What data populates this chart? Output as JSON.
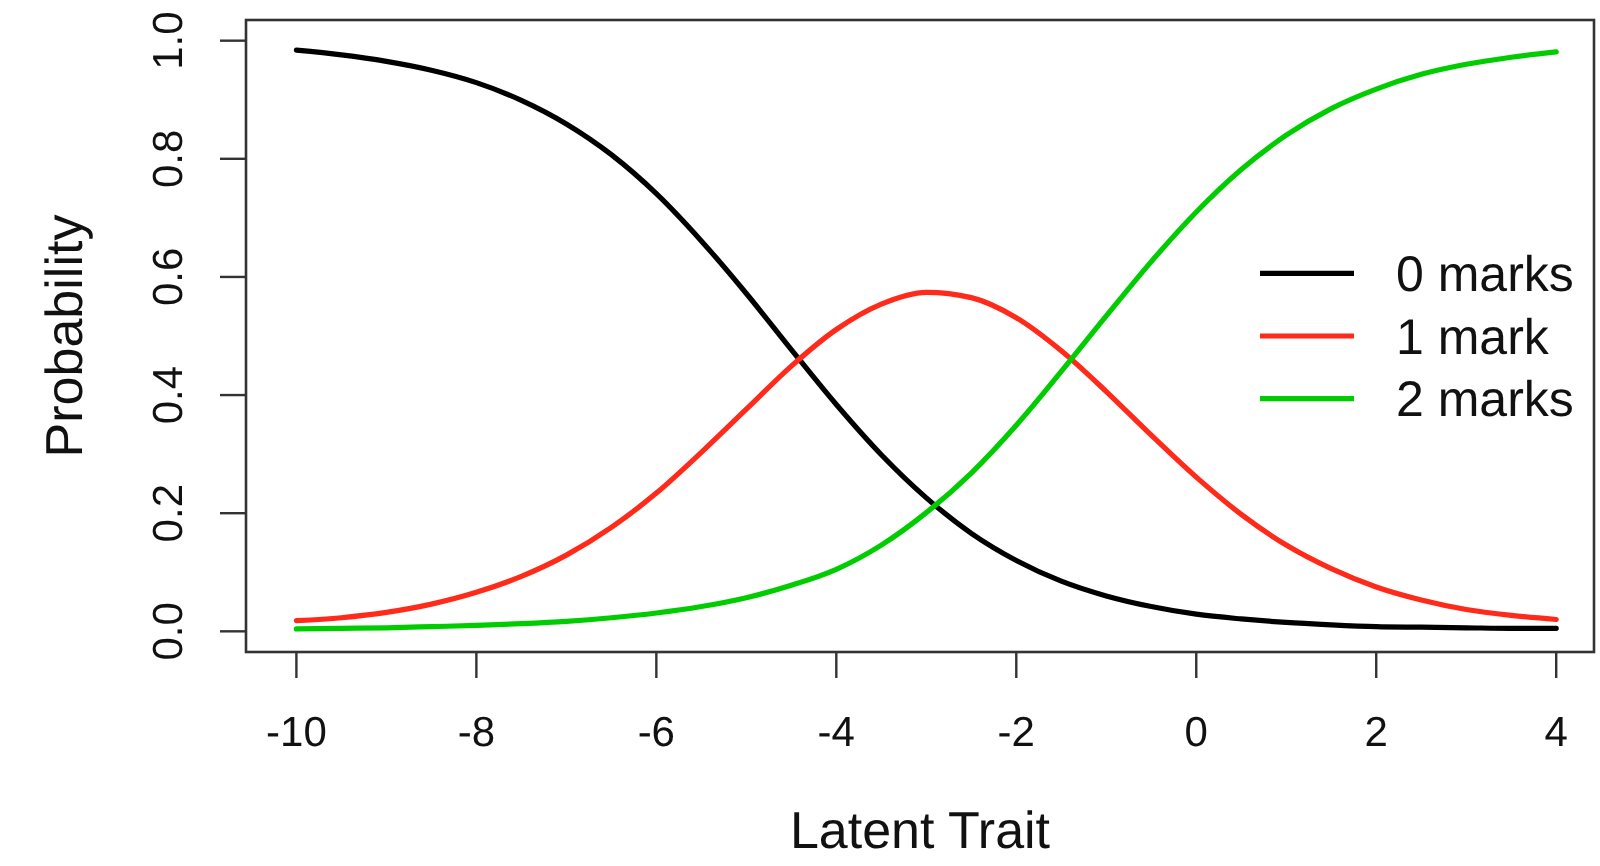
{
  "chart_data": {
    "type": "line",
    "xlabel": "Latent Trait",
    "ylabel": "Probability",
    "x": [
      -10,
      -9.5,
      -9,
      -8.5,
      -8,
      -7.5,
      -7,
      -6.5,
      -6,
      -5.5,
      -5,
      -4.5,
      -4,
      -3.5,
      -3,
      -2.5,
      -2,
      -1.5,
      -1,
      -0.5,
      0,
      0.5,
      1,
      1.5,
      2,
      2.5,
      3,
      3.5,
      4
    ],
    "series": [
      {
        "name": "0 marks",
        "color": "#000000",
        "values": [
          0.984,
          0.976,
          0.965,
          0.95,
          0.929,
          0.899,
          0.859,
          0.807,
          0.741,
          0.661,
          0.572,
          0.477,
          0.384,
          0.299,
          0.226,
          0.166,
          0.12,
          0.085,
          0.06,
          0.042,
          0.029,
          0.021,
          0.015,
          0.011,
          0.008,
          0.007,
          0.006,
          0.005,
          0.005
        ]
      },
      {
        "name": "1 mark",
        "color": "#ff2a1a",
        "values": [
          0.018,
          0.023,
          0.032,
          0.046,
          0.066,
          0.093,
          0.129,
          0.176,
          0.234,
          0.303,
          0.376,
          0.449,
          0.511,
          0.554,
          0.574,
          0.565,
          0.531,
          0.475,
          0.406,
          0.332,
          0.261,
          0.198,
          0.146,
          0.106,
          0.075,
          0.053,
          0.037,
          0.027,
          0.02
        ]
      },
      {
        "name": "2 marks",
        "color": "#00cd00",
        "values": [
          0.004,
          0.005,
          0.006,
          0.008,
          0.01,
          0.013,
          0.017,
          0.023,
          0.031,
          0.042,
          0.057,
          0.078,
          0.105,
          0.146,
          0.201,
          0.268,
          0.349,
          0.44,
          0.534,
          0.626,
          0.71,
          0.782,
          0.84,
          0.885,
          0.918,
          0.943,
          0.96,
          0.972,
          0.981
        ]
      }
    ],
    "xlim": [
      -10.56,
      4.42
    ],
    "ylim": [
      -0.035,
      1.035
    ],
    "xticks": [
      -10,
      -8,
      -6,
      -4,
      -2,
      0,
      2,
      4
    ],
    "yticks": [
      {
        "value": 0,
        "label": "0.0"
      },
      0.2,
      0.4,
      0.6,
      0.8,
      {
        "value": 1,
        "label": "1.0"
      }
    ],
    "legend": "right"
  }
}
